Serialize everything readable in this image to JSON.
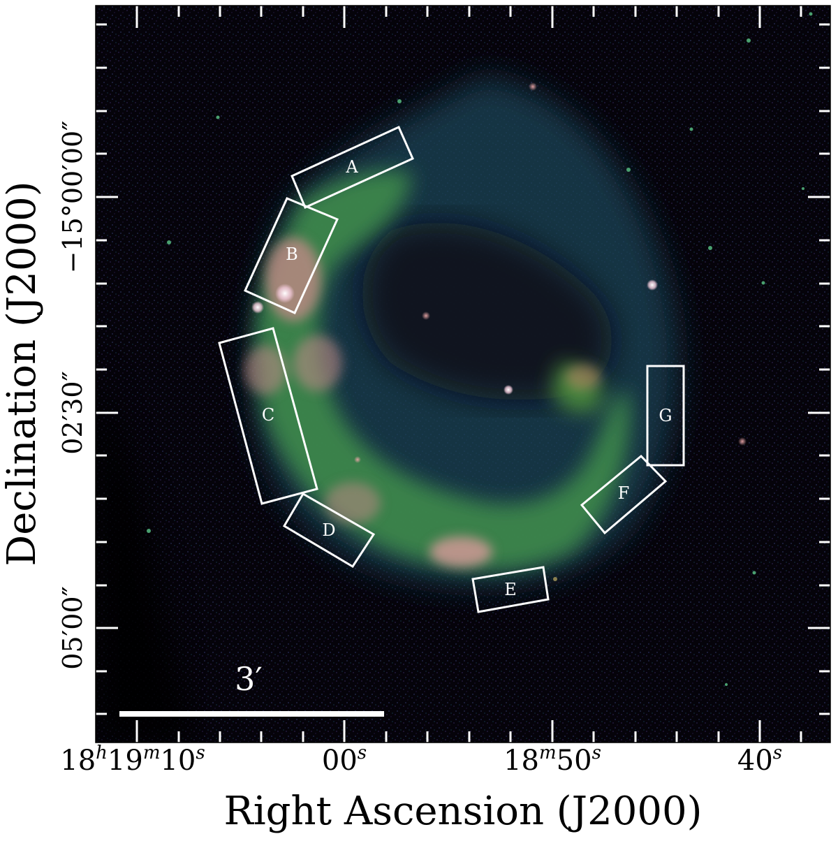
{
  "figure": {
    "xlabel": "Right Ascension (J2000)",
    "ylabel": "Declination (J2000)",
    "scale_bar_label": "3′",
    "x_tick_labels": [
      {
        "main": "18",
        "sup1": "h",
        "main2": "19",
        "sup2": "m",
        "main3": "10",
        "sup3": "s"
      },
      {
        "main": "00",
        "sup1": "s"
      },
      {
        "main": "18",
        "sup1": "m",
        "main2": "50",
        "sup2": "s"
      },
      {
        "main": "40",
        "sup1": "s"
      }
    ],
    "y_tick_labels": [
      "−15°00′00″",
      "02′30″",
      "05′00″"
    ],
    "regions": [
      "A",
      "B",
      "C",
      "D",
      "E",
      "F",
      "G"
    ],
    "colors": {
      "background": "#000000",
      "faint_shell": "#1d4d5a",
      "bright_shell": "#3a8a4a",
      "brightest_knots": "#d98a8a",
      "region_outline": "#ffffff"
    }
  }
}
